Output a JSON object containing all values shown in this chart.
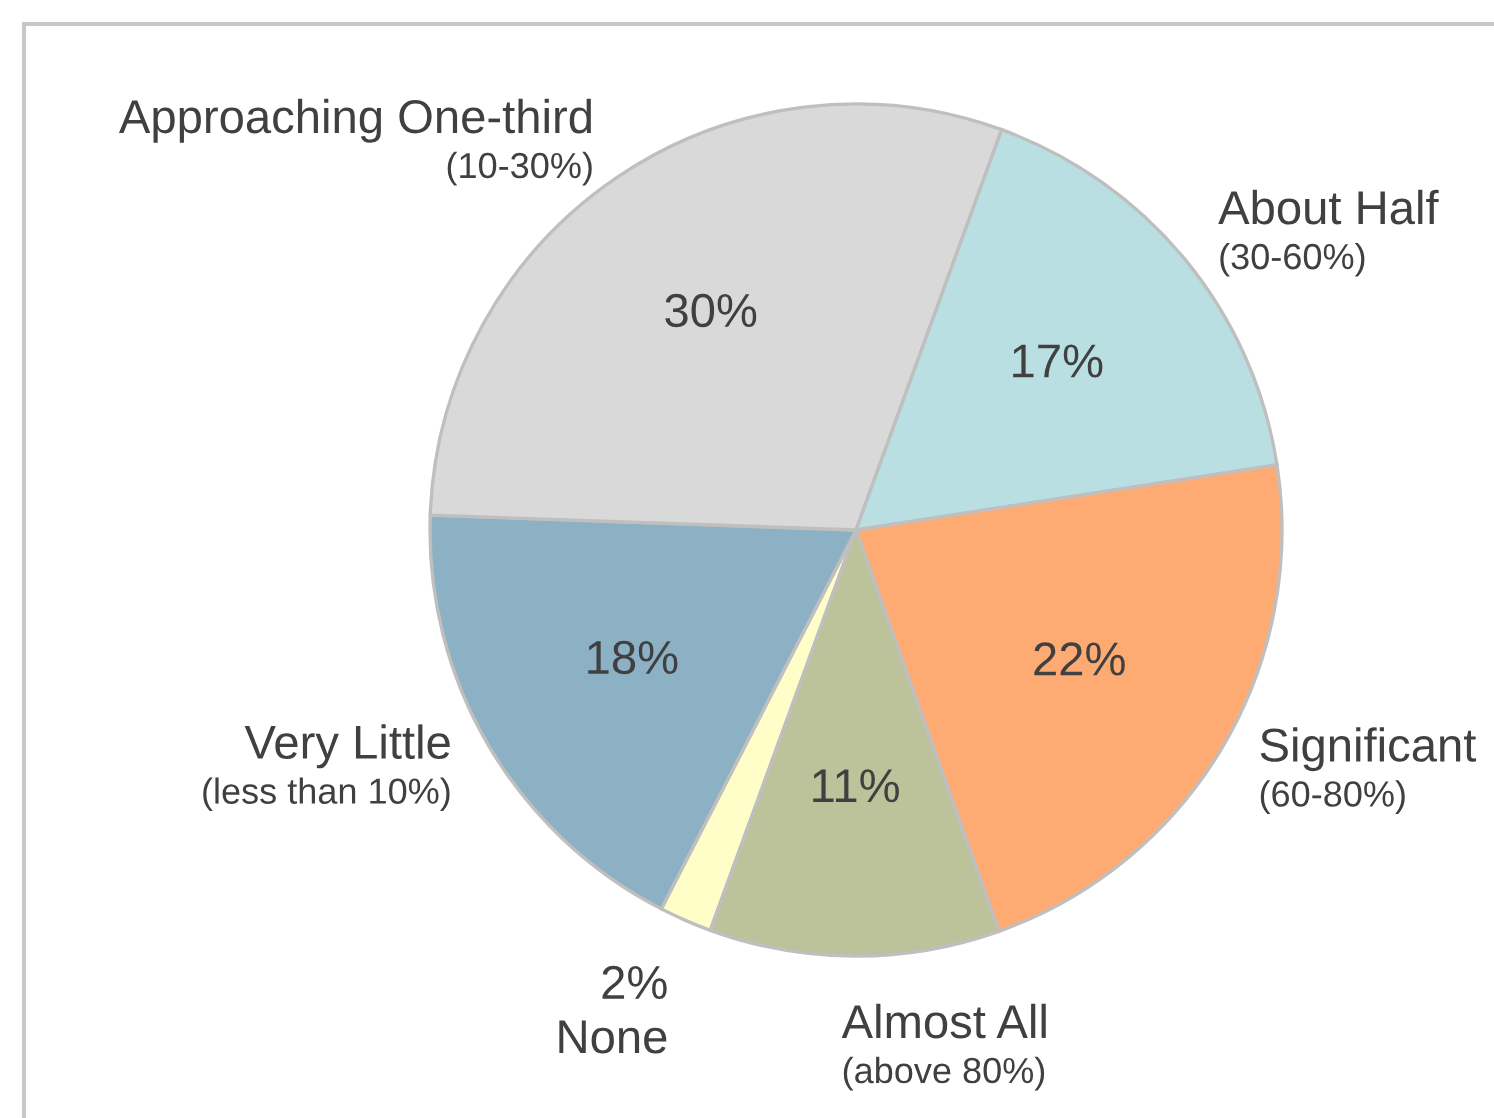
{
  "chart_data": {
    "type": "pie",
    "categories": [
      "None",
      "Very Little\n(less than 10%)",
      "Approaching One-third\n(10-30%)",
      "About Half\n(30-60%)",
      "Significant\n(60-80%)",
      "Almost All\n(above 80%)"
    ],
    "values": [
      2,
      18,
      30,
      17,
      22,
      11
    ],
    "colors": [
      "#fffdc8",
      "#8cb1c5",
      "#d9d9d9",
      "#b9dfe3",
      "#fdab73",
      "#bcc299"
    ],
    "value_labels": [
      "2%",
      "18%",
      "30%",
      "17%",
      "22%",
      "11%"
    ]
  }
}
